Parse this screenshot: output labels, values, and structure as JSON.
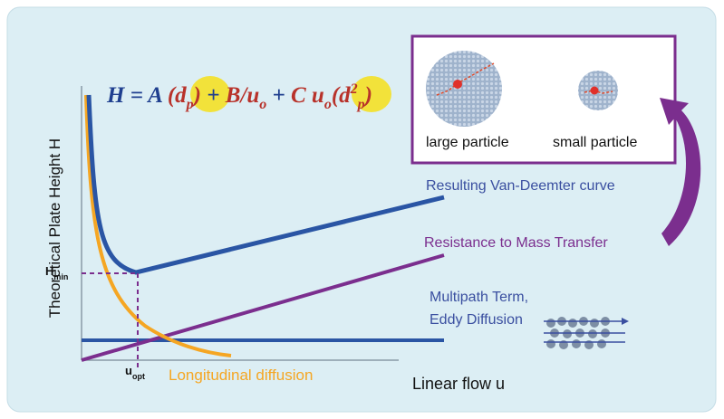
{
  "axis": {
    "y_label": "Theoretical Plate Height H",
    "x_label": "Linear flow u",
    "h_min": {
      "base": "H",
      "sub": "min"
    },
    "u_opt": {
      "base": "u",
      "sub": "opt"
    }
  },
  "equation": {
    "parts": [
      {
        "text": "H = A ",
        "pos": "base",
        "color": "#1f3f8f"
      },
      {
        "text": "(d",
        "pos": "base",
        "color": "#b8322a"
      },
      {
        "text": "p",
        "pos": "sub",
        "color": "#b8322a"
      },
      {
        "text": ")",
        "pos": "base",
        "color": "#b8322a"
      },
      {
        "text": " + ",
        "pos": "base",
        "color": "#1f3f8f"
      },
      {
        "text": "B/u",
        "pos": "base",
        "color": "#b8322a"
      },
      {
        "text": "o",
        "pos": "sub",
        "color": "#b8322a"
      },
      {
        "text": " + ",
        "pos": "base",
        "color": "#1f3f8f"
      },
      {
        "text": "C u",
        "pos": "base",
        "color": "#b8322a"
      },
      {
        "text": "o",
        "pos": "sub",
        "color": "#b8322a"
      },
      {
        "text": "(d",
        "pos": "base",
        "color": "#b8322a"
      },
      {
        "text": "2",
        "pos": "sup",
        "color": "#b8322a"
      },
      {
        "text": "p",
        "pos": "sub",
        "color": "#b8322a"
      },
      {
        "text": ")",
        "pos": "base",
        "color": "#b8322a"
      }
    ]
  },
  "curves": {
    "van_deemter": "Resulting Van-Deemter curve",
    "mass_transfer": "Resistance to Mass Transfer",
    "multipath": [
      "Multipath Term,",
      "Eddy Diffusion"
    ],
    "longitudinal": "Longitudinal diffusion"
  },
  "inset": {
    "large": "large particle",
    "small": "small particle"
  }
}
